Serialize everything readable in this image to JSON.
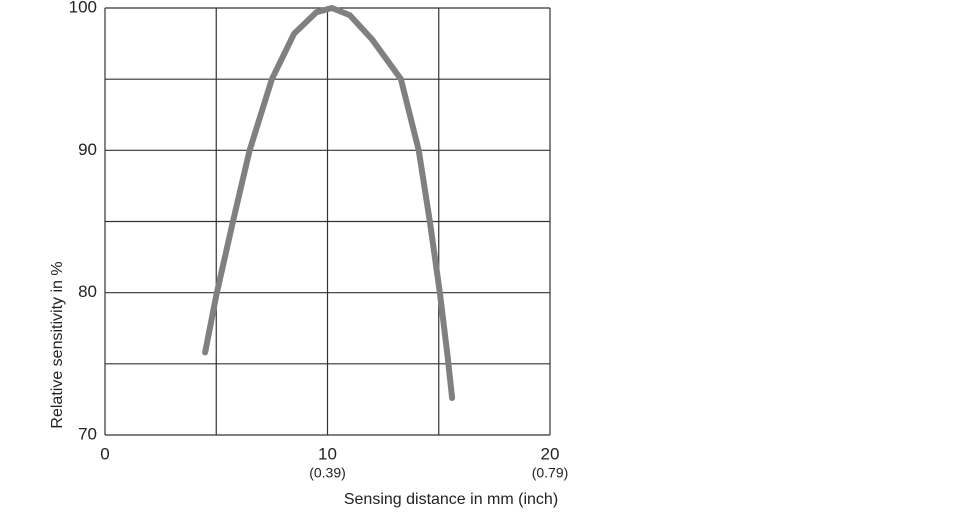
{
  "chart_data": {
    "type": "line",
    "xlabel": "Sensing distance in mm (inch)",
    "ylabel": "Relative sensitivity in %",
    "xlim": [
      0,
      20
    ],
    "ylim": [
      70,
      100
    ],
    "xticks": [
      0,
      10,
      20
    ],
    "xticks_inch": [
      {
        "value": 10,
        "label": "(0.39)"
      },
      {
        "value": 20,
        "label": "(0.79)"
      }
    ],
    "yticks": [
      70,
      80,
      90,
      100
    ],
    "xgrid": [
      0,
      5,
      10,
      15,
      20
    ],
    "ygrid": [
      70,
      75,
      80,
      85,
      90,
      95,
      100
    ],
    "grid": true,
    "series": [
      {
        "color": "#808080",
        "x": [
          4.5,
          5,
          5.75,
          6.5,
          7.5,
          8.5,
          9.5,
          10.2,
          11,
          12,
          13.3,
          14.1,
          14.6,
          15.05,
          15.4,
          15.6
        ],
        "values": [
          75.8,
          79.8,
          85,
          90,
          95,
          98.2,
          99.7,
          100,
          99.5,
          97.8,
          95,
          90,
          85,
          80,
          75.5,
          72.6
        ]
      }
    ]
  }
}
